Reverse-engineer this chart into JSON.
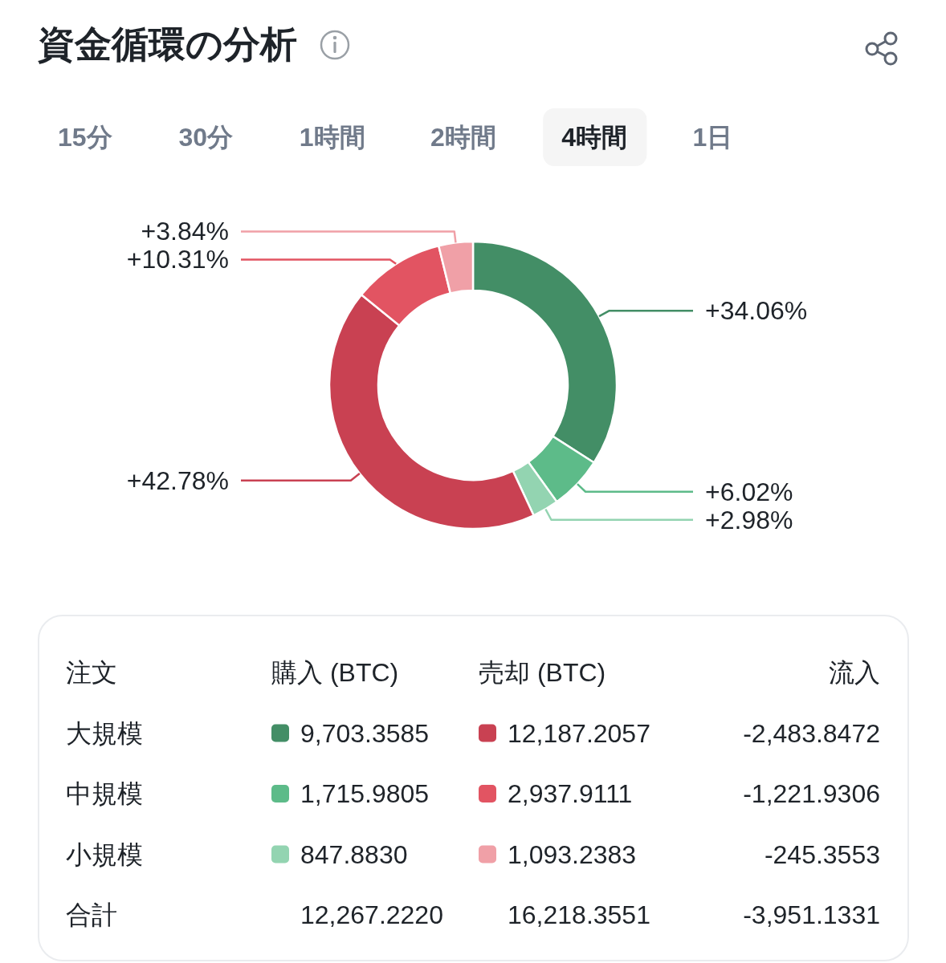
{
  "chart_data": [
    {
      "type": "donut",
      "title": "資金循環の分析",
      "annotations": [
        "15分",
        "30分",
        "1時間",
        "2時間",
        "4時間",
        "1日"
      ],
      "categories": [
        null,
        null,
        null,
        null,
        null,
        null
      ],
      "values": [
        34.06,
        6.02,
        2.98,
        42.78,
        10.31,
        3.84
      ],
      "colors": [
        "#438e66",
        "#5dbb89",
        "#93d4b1",
        "#c94152",
        "#e25462",
        "#f0a0a7"
      ],
      "value_labels": [
        "+34.06%",
        "+6.02%",
        "+2.98%",
        "+42.78%",
        "+10.31%",
        "+3.84%"
      ]
    },
    {
      "type": "other",
      "annotations": [
        "注文",
        "購入 (BTC)",
        "売却 (BTC)",
        "流入",
        "大規模",
        "9,703.3585",
        "12,187.2057",
        "-2,483.8472",
        "中規模",
        "1,715.9805",
        "2,937.9111",
        "-1,221.9306",
        "小規模",
        "847.8830",
        "1,093.2383",
        "-245.3553",
        "合計",
        "12,267.2220",
        "16,218.3551",
        "-3,951.1331"
      ]
    }
  ]
}
